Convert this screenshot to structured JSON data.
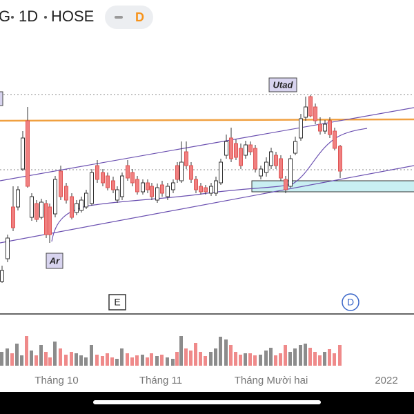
{
  "header": {
    "symbol": "G",
    "interval": "1D",
    "exchange": "HOSE",
    "badge": "D"
  },
  "annotations": {
    "top_label": "Utad",
    "bottom_label": "Ar",
    "event_e": "E",
    "event_d": "D"
  },
  "x_axis": {
    "labels": [
      "Tháng 10",
      "Tháng 11",
      "Tháng Mười hai",
      "2022"
    ]
  }
}
